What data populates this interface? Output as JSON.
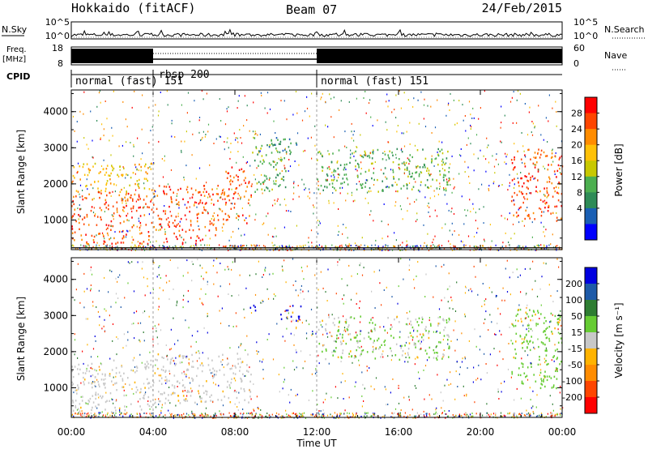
{
  "header": {
    "station": "Hokkaido (fitACF)",
    "beam": "Beam 07",
    "date": "24/Feb/2015"
  },
  "noise_panel": {
    "left_label": "N.Sky",
    "right_label": "N.Search",
    "left_ticks": [
      "10^5",
      "10^0"
    ],
    "right_ticks": [
      "10^5",
      "10^0"
    ]
  },
  "freq_panel": {
    "left_label_line1": "Freq.",
    "left_label_line2": "[MHz]",
    "right_label": "Nave",
    "left_ticks": [
      "18",
      "8"
    ],
    "right_ticks": [
      "60",
      "0"
    ]
  },
  "cpid": {
    "label": "CPID",
    "segments": [
      {
        "label": "normal (fast) 151",
        "start_h": 0,
        "end_h": 4
      },
      {
        "label": "rbsp 200",
        "start_h": 4,
        "end_h": 12
      },
      {
        "label": "normal (fast) 151",
        "start_h": 12,
        "end_h": 24
      }
    ]
  },
  "power_panel": {
    "ylabel": "Slant Range [km]",
    "yticks": [
      1000,
      2000,
      3000,
      4000
    ],
    "colorbar_label": "Power [dB]",
    "colorbar_ticks": [
      "4",
      "8",
      "12",
      "16",
      "20",
      "24",
      "28"
    ],
    "colors": [
      "#0000ff",
      "#1a5fb4",
      "#2e8b57",
      "#4caf50",
      "#c8c800",
      "#ffc107",
      "#ff8c00",
      "#ff4500",
      "#ff0000"
    ]
  },
  "velocity_panel": {
    "ylabel": "Slant Range [km]",
    "yticks": [
      1000,
      2000,
      3000,
      4000
    ],
    "colorbar_label": "Velocity [m s⁻¹]",
    "colorbar_ticks": [
      "200",
      "100",
      "50",
      "15",
      "-15",
      "-50",
      "-100",
      "-200"
    ],
    "colors": [
      "#0000e0",
      "#1e5aa8",
      "#2e7d32",
      "#66cc33",
      "#c8c8c8",
      "#ffb300",
      "#ff8c00",
      "#ff4500",
      "#ff0000"
    ]
  },
  "xaxis": {
    "label": "Time UT",
    "ticks": [
      "00:00",
      "04:00",
      "08:00",
      "12:00",
      "16:00",
      "20:00",
      "00:00"
    ]
  },
  "chart_data": {
    "type": "heatmap",
    "x_range_hours": [
      0,
      24
    ],
    "y_range_km": [
      180,
      4600
    ],
    "power_regions": [
      {
        "t0": 0,
        "t1": 4,
        "r0": 350,
        "r1": 1800,
        "dB": 28
      },
      {
        "t0": 0,
        "t1": 4,
        "r0": 1800,
        "r1": 2600,
        "dB": 18
      },
      {
        "t0": 4,
        "t1": 7.5,
        "r0": 600,
        "r1": 2000,
        "dB": 28
      },
      {
        "t0": 4.6,
        "t1": 6.5,
        "r0": 350,
        "r1": 600,
        "dB": 30
      },
      {
        "t0": 7.5,
        "t1": 8.8,
        "r0": 900,
        "r1": 2500,
        "dB": 26
      },
      {
        "t0": 8.8,
        "t1": 10.5,
        "r0": 1800,
        "r1": 3300,
        "dB": 14
      },
      {
        "t0": 9.5,
        "t1": 11,
        "r0": 2800,
        "r1": 3300,
        "dB": 10
      },
      {
        "t0": 12,
        "t1": 18.5,
        "r0": 1800,
        "r1": 3000,
        "dB": 14
      },
      {
        "t0": 21.5,
        "t1": 24,
        "r0": 1000,
        "r1": 3000,
        "dB": 26
      }
    ],
    "velocity_regions": [
      {
        "t0": 0,
        "t1": 4,
        "r0": 350,
        "r1": 1800,
        "v": 0
      },
      {
        "t0": 4,
        "t1": 8.8,
        "r0": 600,
        "r1": 2000,
        "v": 0
      },
      {
        "t0": 8.6,
        "t1": 9.1,
        "r0": 3100,
        "r1": 3400,
        "v": 200
      },
      {
        "t0": 10.2,
        "t1": 11.2,
        "r0": 2800,
        "r1": 3300,
        "v": 200
      },
      {
        "t0": 12,
        "t1": 18.5,
        "r0": 1800,
        "r1": 3000,
        "v": 20
      },
      {
        "t0": 21.5,
        "t1": 24,
        "r0": 1000,
        "r1": 3200,
        "v": 40
      }
    ]
  }
}
